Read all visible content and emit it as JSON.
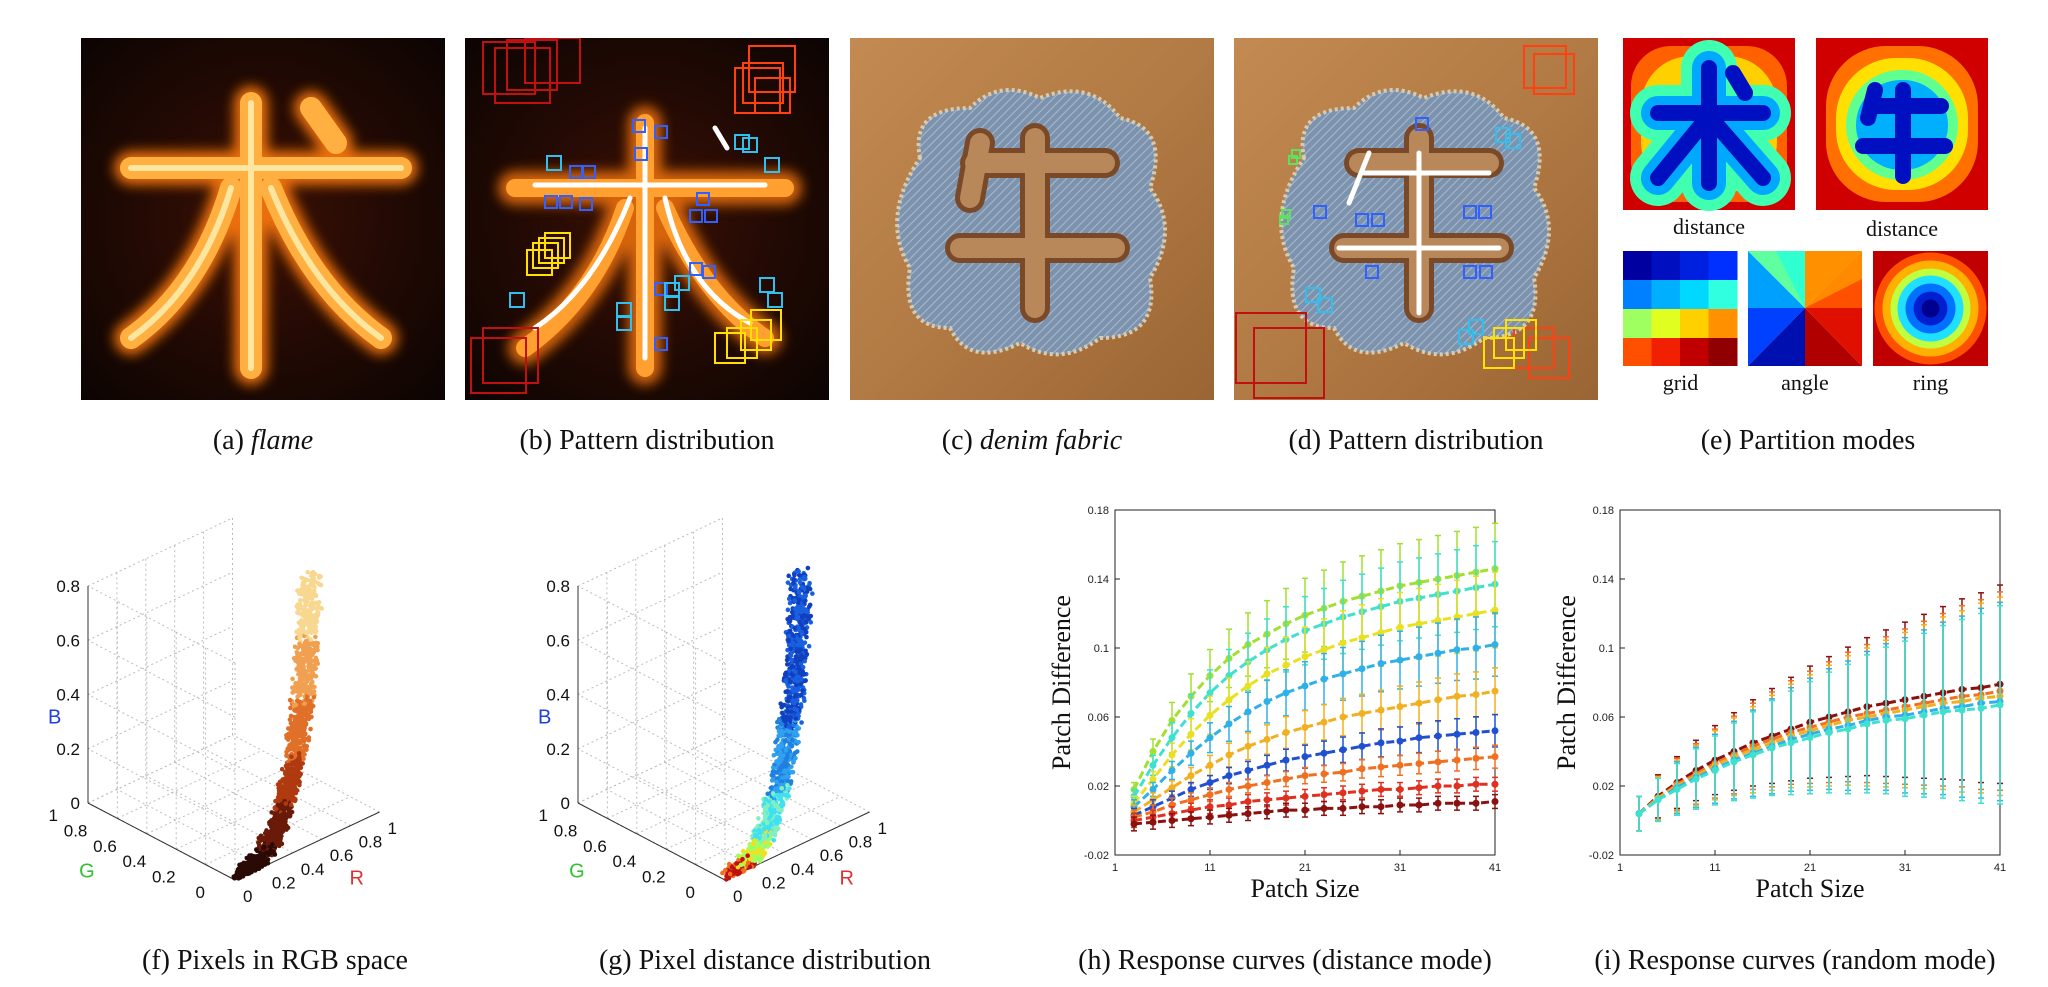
{
  "captions": {
    "a_label": "(a)",
    "a_text": "flame",
    "b": "(b)  Pattern distribution",
    "c_label": "(c)",
    "c_text": "denim fabric",
    "d": "(d)  Pattern distribution",
    "e": "(e)  Partition modes",
    "f": "(f)  Pixels in RGB space",
    "g": "(g)  Pixel distance distribution",
    "h": "(h)  Response curves (distance mode)",
    "i": "(i)  Response curves (random mode)"
  },
  "partition_labels": {
    "distance1": "distance",
    "distance2": "distance",
    "grid": "grid",
    "angle": "angle",
    "ring": "ring"
  },
  "glyphs": {
    "flame_char": "术",
    "denim_char": "牛"
  },
  "scatter_axes": {
    "b_label": "B",
    "g_label": "G",
    "r_label": "R",
    "b_ticks": [
      "0",
      "0.2",
      "0.4",
      "0.6",
      "0.8"
    ],
    "g_ticks": [
      "0",
      "0.2",
      "0.4",
      "0.6",
      "0.8",
      "1"
    ],
    "r_ticks": [
      "0",
      "0.2",
      "0.4",
      "0.6",
      "0.8",
      "1"
    ]
  },
  "chart_data": [
    {
      "type": "line",
      "panel": "h",
      "xlabel": "Patch Size",
      "ylabel": "Patch Difference",
      "xticks": [
        "1",
        "11",
        "21",
        "31",
        "41"
      ],
      "yticks": [
        "-0.02",
        "0.02",
        "0.06",
        "0.1",
        "0.14",
        "0.18"
      ],
      "xlim": [
        1,
        41
      ],
      "ylim": [
        -0.02,
        0.18
      ],
      "x": [
        3,
        5,
        7,
        9,
        11,
        13,
        15,
        17,
        19,
        21,
        23,
        25,
        27,
        29,
        31,
        33,
        35,
        37,
        39,
        41
      ],
      "series": [
        {
          "color": "#a0e030",
          "values": [
            0.018,
            0.04,
            0.058,
            0.072,
            0.084,
            0.094,
            0.102,
            0.108,
            0.114,
            0.119,
            0.123,
            0.127,
            0.13,
            0.133,
            0.136,
            0.138,
            0.14,
            0.142,
            0.144,
            0.146
          ]
        },
        {
          "color": "#40e0d0",
          "values": [
            0.014,
            0.032,
            0.048,
            0.062,
            0.074,
            0.084,
            0.092,
            0.099,
            0.105,
            0.11,
            0.114,
            0.118,
            0.121,
            0.124,
            0.127,
            0.129,
            0.131,
            0.133,
            0.135,
            0.137
          ]
        },
        {
          "color": "#e8e020",
          "values": [
            0.01,
            0.024,
            0.038,
            0.05,
            0.061,
            0.07,
            0.078,
            0.085,
            0.09,
            0.095,
            0.099,
            0.103,
            0.106,
            0.109,
            0.112,
            0.114,
            0.116,
            0.118,
            0.12,
            0.122
          ]
        },
        {
          "color": "#30b0e8",
          "values": [
            0.008,
            0.018,
            0.029,
            0.039,
            0.048,
            0.056,
            0.063,
            0.069,
            0.074,
            0.078,
            0.082,
            0.085,
            0.088,
            0.091,
            0.093,
            0.095,
            0.097,
            0.099,
            0.1,
            0.102
          ]
        },
        {
          "color": "#f0b020",
          "values": [
            0.005,
            0.012,
            0.019,
            0.026,
            0.032,
            0.038,
            0.043,
            0.047,
            0.051,
            0.054,
            0.057,
            0.06,
            0.062,
            0.064,
            0.066,
            0.068,
            0.07,
            0.072,
            0.073,
            0.075
          ]
        },
        {
          "color": "#2050d0",
          "values": [
            0.003,
            0.008,
            0.013,
            0.018,
            0.022,
            0.026,
            0.029,
            0.032,
            0.035,
            0.037,
            0.039,
            0.041,
            0.043,
            0.045,
            0.046,
            0.048,
            0.049,
            0.05,
            0.051,
            0.052
          ]
        },
        {
          "color": "#f07020",
          "values": [
            0.002,
            0.005,
            0.009,
            0.012,
            0.015,
            0.018,
            0.02,
            0.022,
            0.024,
            0.026,
            0.027,
            0.028,
            0.03,
            0.031,
            0.032,
            0.033,
            0.034,
            0.035,
            0.036,
            0.037
          ]
        },
        {
          "color": "#e03020",
          "values": [
            0.0,
            0.002,
            0.004,
            0.006,
            0.008,
            0.009,
            0.011,
            0.012,
            0.013,
            0.014,
            0.015,
            0.016,
            0.017,
            0.018,
            0.018,
            0.019,
            0.02,
            0.02,
            0.021,
            0.021
          ]
        },
        {
          "color": "#8b1010",
          "values": [
            -0.002,
            -0.001,
            0.0,
            0.001,
            0.002,
            0.003,
            0.004,
            0.005,
            0.006,
            0.006,
            0.007,
            0.007,
            0.008,
            0.008,
            0.009,
            0.009,
            0.01,
            0.01,
            0.01,
            0.011
          ]
        }
      ]
    },
    {
      "type": "line",
      "panel": "i",
      "xlabel": "Patch Size",
      "ylabel": "Patch Difference",
      "xticks": [
        "1",
        "11",
        "21",
        "31",
        "41"
      ],
      "yticks": [
        "-0.02",
        "0.02",
        "0.06",
        "0.1",
        "0.14",
        "0.18"
      ],
      "xlim": [
        1,
        41
      ],
      "ylim": [
        -0.02,
        0.18
      ],
      "x": [
        3,
        5,
        7,
        9,
        11,
        13,
        15,
        17,
        19,
        21,
        23,
        25,
        27,
        29,
        31,
        33,
        35,
        37,
        39,
        41
      ],
      "series": [
        {
          "color": "#8b1010",
          "values": [
            0.004,
            0.014,
            0.022,
            0.029,
            0.035,
            0.04,
            0.045,
            0.049,
            0.053,
            0.057,
            0.06,
            0.063,
            0.066,
            0.068,
            0.07,
            0.072,
            0.074,
            0.076,
            0.077,
            0.079
          ]
        },
        {
          "color": "#f07020",
          "values": [
            0.004,
            0.013,
            0.021,
            0.027,
            0.033,
            0.038,
            0.043,
            0.047,
            0.051,
            0.054,
            0.057,
            0.06,
            0.062,
            0.064,
            0.066,
            0.068,
            0.07,
            0.072,
            0.073,
            0.075
          ]
        },
        {
          "color": "#f0b020",
          "values": [
            0.004,
            0.013,
            0.02,
            0.026,
            0.032,
            0.037,
            0.041,
            0.045,
            0.049,
            0.052,
            0.055,
            0.058,
            0.06,
            0.062,
            0.064,
            0.066,
            0.068,
            0.069,
            0.071,
            0.072
          ]
        },
        {
          "color": "#30b0e8",
          "values": [
            0.004,
            0.012,
            0.019,
            0.025,
            0.03,
            0.035,
            0.039,
            0.043,
            0.047,
            0.05,
            0.053,
            0.055,
            0.058,
            0.06,
            0.061,
            0.063,
            0.065,
            0.066,
            0.068,
            0.069
          ]
        },
        {
          "color": "#40e0d0",
          "values": [
            0.004,
            0.012,
            0.018,
            0.024,
            0.029,
            0.034,
            0.038,
            0.042,
            0.045,
            0.048,
            0.051,
            0.053,
            0.056,
            0.058,
            0.059,
            0.061,
            0.063,
            0.064,
            0.065,
            0.067
          ]
        }
      ],
      "errorbars": true
    }
  ]
}
